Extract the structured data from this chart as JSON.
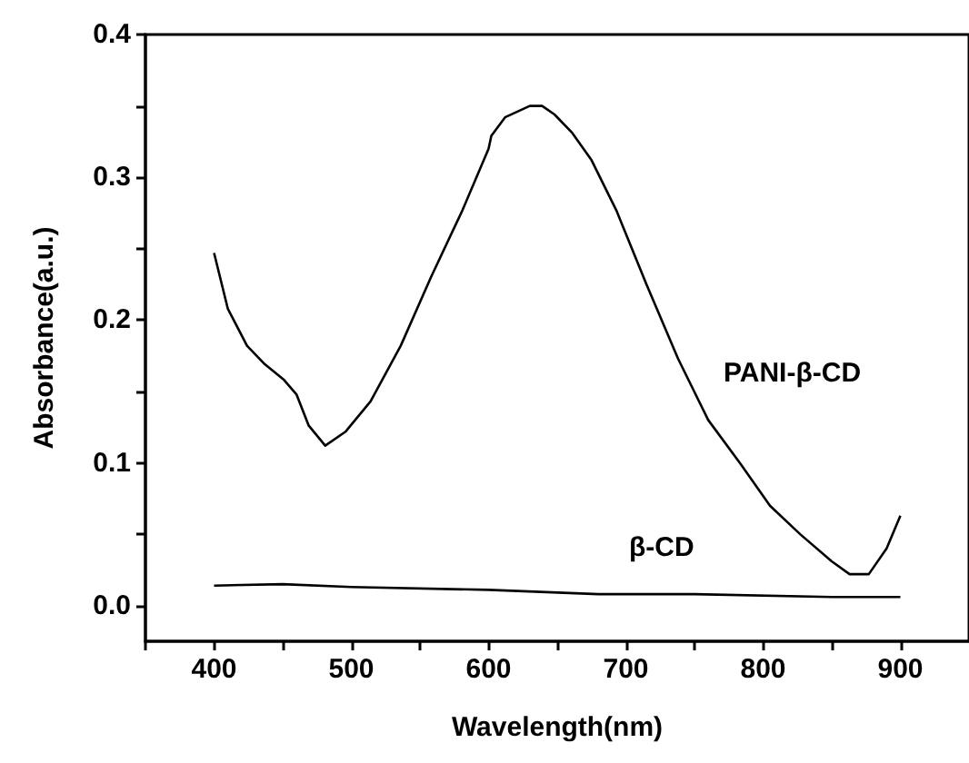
{
  "chart_data": {
    "type": "line",
    "xlabel": "Wavelength(nm)",
    "ylabel": "Absorbance(a.u.)",
    "xlim": [
      350,
      950
    ],
    "ylim": [
      -0.025,
      0.4
    ],
    "xticks": [
      {
        "value": 350,
        "label": null
      },
      400,
      {
        "value": 450,
        "label": null
      },
      500,
      {
        "value": 550,
        "label": null
      },
      600,
      {
        "value": 650,
        "label": null
      },
      700,
      {
        "value": 750,
        "label": null
      },
      800,
      {
        "value": 850,
        "label": null
      },
      900
    ],
    "yticks": [
      {
        "value": 0,
        "label": "0.0"
      },
      {
        "value": 0.05,
        "label": null
      },
      0.1,
      {
        "value": 0.15,
        "label": null
      },
      0.2,
      {
        "value": 0.25,
        "label": null
      },
      0.3,
      {
        "value": 0.35,
        "label": null
      },
      0.4
    ],
    "grid": false,
    "marker": "none",
    "line_style": "solid",
    "series": [
      {
        "name": "PANI-β-CD",
        "color": "#000000",
        "x": [
          400,
          410,
          424,
          437,
          451,
          460,
          469,
          481,
          496,
          514,
          536,
          558,
          581,
          600,
          602,
          612,
          630,
          639,
          648,
          661,
          675,
          693,
          715,
          738,
          760,
          783,
          805,
          827,
          850,
          863,
          877,
          890,
          900
        ],
        "values": [
          0.247,
          0.208,
          0.182,
          0.169,
          0.158,
          0.148,
          0.126,
          0.112,
          0.122,
          0.143,
          0.182,
          0.23,
          0.277,
          0.32,
          0.329,
          0.342,
          0.35,
          0.35,
          0.344,
          0.331,
          0.312,
          0.277,
          0.225,
          0.173,
          0.13,
          0.1,
          0.07,
          0.05,
          0.031,
          0.022,
          0.022,
          0.04,
          0.063
        ]
      },
      {
        "name": "β-CD",
        "color": "#000000",
        "x": [
          400,
          450,
          500,
          600,
          680,
          750,
          850,
          900
        ],
        "values": [
          0.014,
          0.015,
          0.013,
          0.011,
          0.008,
          0.008,
          0.006,
          0.006
        ]
      }
    ]
  }
}
